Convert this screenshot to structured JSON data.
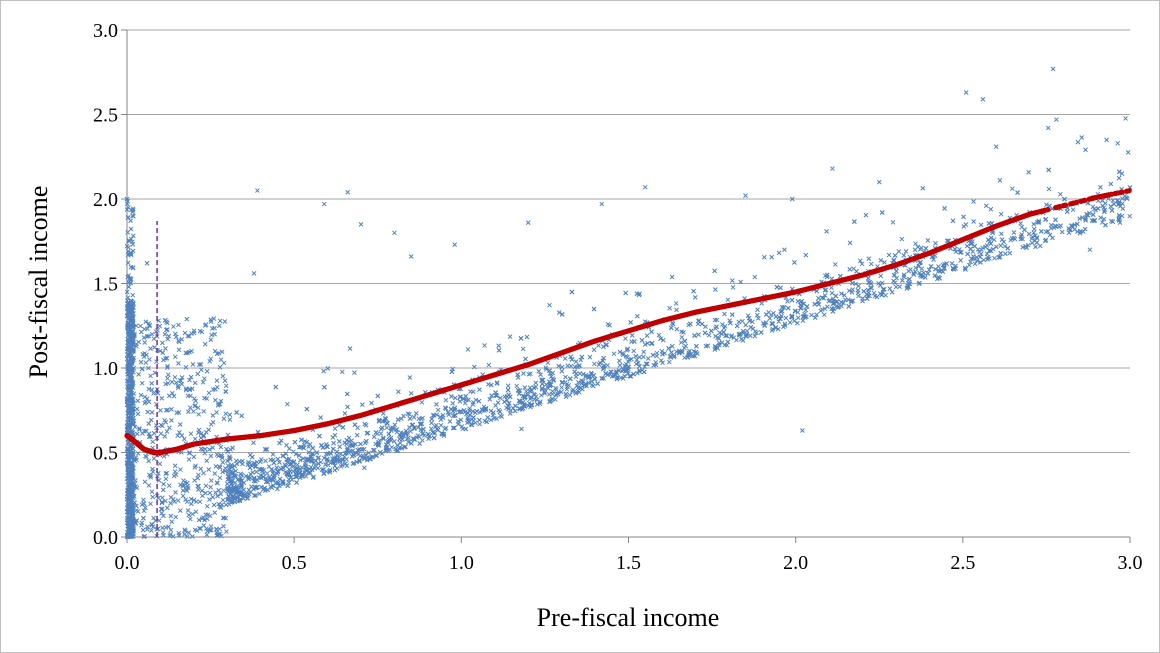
{
  "chart_data": {
    "type": "scatter",
    "title": "",
    "xlabel": "Pre-fiscal income",
    "ylabel": "Post-fiscal income",
    "xlim": [
      0.0,
      3.0
    ],
    "ylim": [
      0.0,
      3.0
    ],
    "x_ticks": [
      "0.0",
      "0.5",
      "1.0",
      "1.5",
      "2.0",
      "2.5",
      "3.0"
    ],
    "y_ticks": [
      "0.0",
      "0.5",
      "1.0",
      "1.5",
      "2.0",
      "2.5",
      "3.0"
    ],
    "grid": "horizontal",
    "legend": "none",
    "colors": {
      "scatter": "#4f81bd",
      "fit": "#c00000",
      "vline": "#7030a0",
      "grid": "#a6a6a6"
    },
    "series": [
      {
        "kind": "scatter-cloud",
        "marker": "x",
        "points": [
          [
            2.77,
            2.77
          ],
          [
            2.78,
            2.47
          ],
          [
            2.51,
            2.63
          ],
          [
            2.56,
            2.59
          ],
          [
            2.6,
            2.31
          ],
          [
            2.93,
            2.35
          ],
          [
            2.57,
            1.96
          ],
          [
            2.25,
            2.1
          ],
          [
            2.11,
            2.18
          ],
          [
            1.55,
            2.07
          ],
          [
            0.39,
            2.05
          ],
          [
            0.66,
            2.04
          ],
          [
            0.59,
            1.97
          ],
          [
            1.85,
            2.02
          ],
          [
            1.99,
            2.0
          ],
          [
            0.0,
            2.0
          ],
          [
            0.7,
            1.85
          ],
          [
            0.8,
            1.8
          ],
          [
            0.06,
            1.62
          ],
          [
            0.38,
            1.56
          ],
          [
            0.85,
            1.66
          ],
          [
            0.98,
            1.73
          ],
          [
            1.2,
            1.86
          ],
          [
            1.42,
            1.97
          ],
          [
            2.97,
            1.86
          ],
          [
            2.88,
            1.7
          ],
          [
            2.02,
            0.63
          ],
          [
            1.18,
            0.64
          ],
          [
            0.71,
            0.41
          ],
          [
            0.01,
            0.03
          ]
        ],
        "cloud": [
          {
            "x_range": [
              0.0,
              0.02
            ],
            "y_range": [
              0.0,
              2.0
            ],
            "count": 650
          },
          {
            "x_range": [
              0.02,
              0.3
            ],
            "y_range": [
              0.0,
              1.3
            ],
            "count": 500
          },
          {
            "x_range": [
              0.3,
              3.0
            ],
            "trend": "y = 0.63*x + 0.05",
            "spread": 0.4,
            "count": 2200
          }
        ]
      },
      {
        "kind": "fit-line",
        "points": [
          [
            0.0,
            0.6
          ],
          [
            0.02,
            0.57
          ],
          [
            0.05,
            0.52
          ],
          [
            0.08,
            0.5
          ],
          [
            0.1,
            0.5
          ],
          [
            0.15,
            0.52
          ],
          [
            0.2,
            0.55
          ],
          [
            0.3,
            0.58
          ],
          [
            0.4,
            0.6
          ],
          [
            0.5,
            0.63
          ],
          [
            0.6,
            0.67
          ],
          [
            0.7,
            0.72
          ],
          [
            0.8,
            0.78
          ],
          [
            0.9,
            0.84
          ],
          [
            1.0,
            0.9
          ],
          [
            1.1,
            0.96
          ],
          [
            1.2,
            1.02
          ],
          [
            1.3,
            1.09
          ],
          [
            1.4,
            1.16
          ],
          [
            1.5,
            1.22
          ],
          [
            1.6,
            1.28
          ],
          [
            1.7,
            1.33
          ],
          [
            1.8,
            1.37
          ],
          [
            1.9,
            1.41
          ],
          [
            2.0,
            1.45
          ],
          [
            2.1,
            1.5
          ],
          [
            2.2,
            1.55
          ],
          [
            2.3,
            1.61
          ],
          [
            2.4,
            1.68
          ],
          [
            2.5,
            1.76
          ],
          [
            2.6,
            1.84
          ],
          [
            2.7,
            1.91
          ],
          [
            2.8,
            1.96
          ],
          [
            2.9,
            2.01
          ],
          [
            3.0,
            2.05
          ]
        ]
      },
      {
        "kind": "vertical-line",
        "x": 0.09,
        "y_range": [
          0.0,
          1.87
        ],
        "style": "dashed"
      }
    ]
  }
}
